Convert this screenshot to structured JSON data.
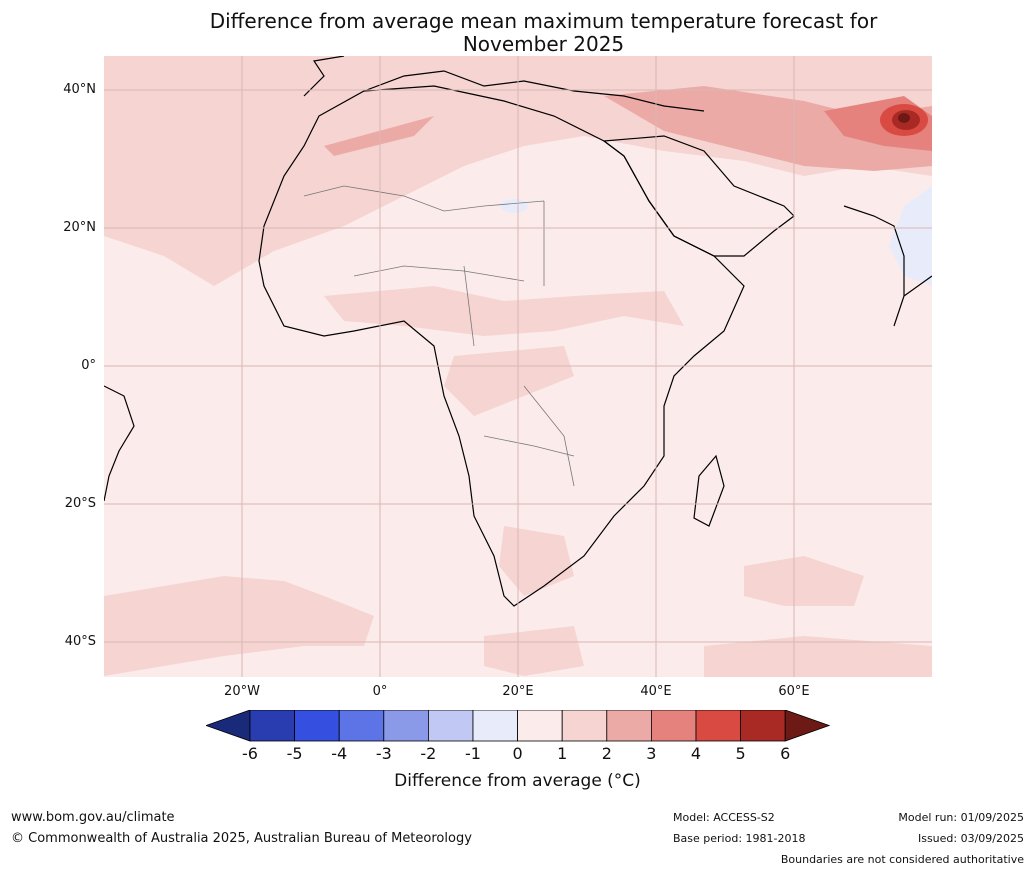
{
  "title": {
    "line1": "Difference from average mean maximum temperature forecast for",
    "line2": "November 2025"
  },
  "map": {
    "lat_labels": [
      "40°N",
      "20°N",
      "0°",
      "20°S",
      "40°S"
    ],
    "lon_labels": [
      "20°W",
      "0°",
      "20°E",
      "40°E",
      "60°E"
    ],
    "ocean_color": "#fbeceb",
    "land_base_color": "#fbe9e8"
  },
  "colorbar": {
    "ticks": [
      "-6",
      "-5",
      "-4",
      "-3",
      "-2",
      "-1",
      "0",
      "1",
      "2",
      "3",
      "4",
      "5",
      "6"
    ],
    "colors": [
      "#1a2a7a",
      "#2a3db0",
      "#3550e0",
      "#5c74e6",
      "#8a9ae9",
      "#c0c8f3",
      "#e8ecfa",
      "#fbeceb",
      "#f5d4d2",
      "#ecaaa7",
      "#e5827e",
      "#d94a42",
      "#a92a24",
      "#6d1a16"
    ],
    "label": "Difference from average ($^\\circ$C)",
    "label_display": "Difference from average (°C)"
  },
  "footer": {
    "site": "www.bom.gov.au/climate",
    "copyright": "© Commonwealth of Australia 2025, Australian Bureau of Meteorology",
    "model": "Model: ACCESS-S2",
    "base_period": "Base period: 1981-2018",
    "model_run": "Model run: 01/09/2025",
    "issued": "Issued: 03/09/2025",
    "boundaries": "Boundaries are not considered authoritative"
  }
}
